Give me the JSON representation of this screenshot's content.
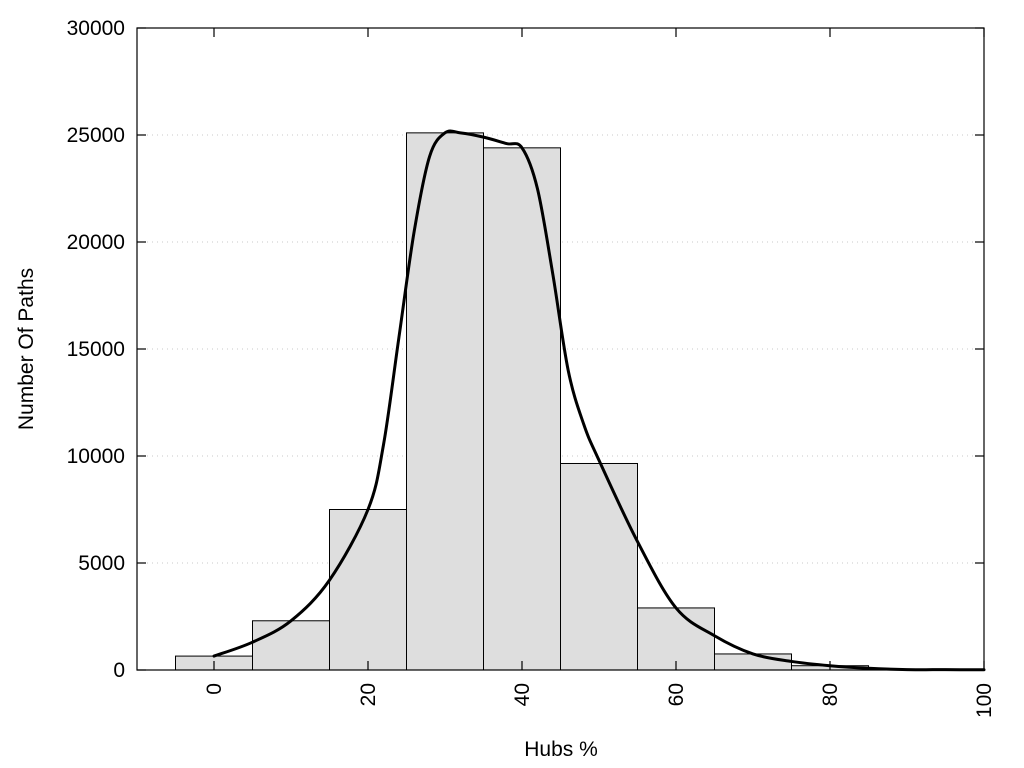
{
  "chart_data": {
    "type": "bar",
    "title": "",
    "xlabel": "Hubs %",
    "ylabel": "Number Of Paths",
    "xlim": [
      -10,
      100
    ],
    "ylim": [
      0,
      30000
    ],
    "x_ticks": [
      0,
      20,
      40,
      60,
      80,
      100
    ],
    "y_ticks": [
      0,
      5000,
      10000,
      15000,
      20000,
      25000,
      30000
    ],
    "bin_width": 10,
    "grid": "y-dotted",
    "histogram": {
      "bin_centers": [
        0,
        10,
        20,
        30,
        40,
        50,
        60,
        70,
        80,
        90,
        100
      ],
      "values": [
        650,
        2300,
        7500,
        25100,
        24400,
        9650,
        2900,
        750,
        200,
        20,
        10
      ]
    },
    "curve": {
      "x": [
        0,
        5,
        10,
        15,
        20,
        22,
        24,
        26,
        28,
        30,
        32,
        35,
        38,
        40,
        42,
        44,
        46,
        48,
        50,
        55,
        60,
        65,
        70,
        75,
        80,
        85,
        90,
        95,
        100
      ],
      "y": [
        650,
        1300,
        2300,
        4200,
        7500,
        10500,
        15500,
        20500,
        24000,
        25100,
        25100,
        24900,
        24600,
        24400,
        22500,
        18500,
        14000,
        11500,
        9800,
        6000,
        2900,
        1600,
        750,
        400,
        200,
        80,
        20,
        15,
        10
      ]
    },
    "colors": {
      "bar_fill": "#dedede",
      "bar_stroke": "#000000",
      "curve": "#000000",
      "grid": "#c8c8c8"
    }
  }
}
